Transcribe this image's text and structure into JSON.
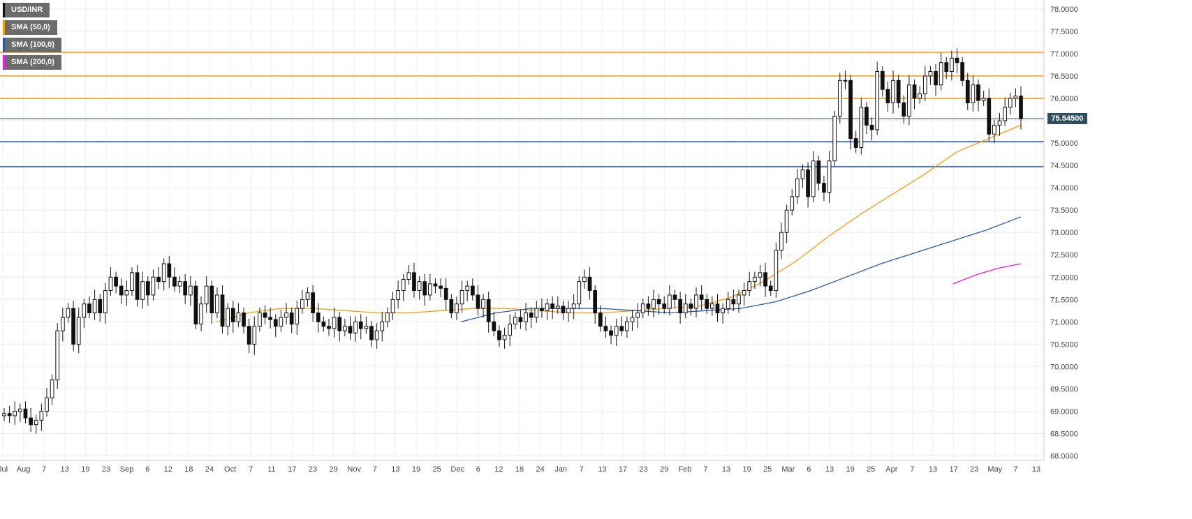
{
  "legend": [
    {
      "label": "USD/INR",
      "color": "#111111"
    },
    {
      "label": "SMA (50,0)",
      "color": "#f39c12"
    },
    {
      "label": "SMA (100,0)",
      "color": "#2c5aa0"
    },
    {
      "label": "SMA (200,0)",
      "color": "#e31ee3"
    }
  ],
  "last_price_label": "75.54500",
  "chart_data": {
    "type": "candlestick",
    "symbol": "USD/INR",
    "ylim": [
      67.9,
      78.2
    ],
    "y_ticks": [
      "68.0000",
      "68.5000",
      "69.0000",
      "69.5000",
      "70.0000",
      "70.5000",
      "71.0000",
      "71.5000",
      "72.0000",
      "72.5000",
      "73.0000",
      "73.5000",
      "74.0000",
      "74.5000",
      "75.0000",
      "75.5000",
      "76.0000",
      "76.5000",
      "77.0000",
      "77.5000",
      "78.0000"
    ],
    "x_ticks": [
      "Jul",
      "Aug",
      "7",
      "13",
      "19",
      "23",
      "Sep",
      "6",
      "12",
      "18",
      "24",
      "Oct",
      "7",
      "11",
      "17",
      "23",
      "29",
      "Nov",
      "7",
      "13",
      "19",
      "25",
      "Dec",
      "6",
      "12",
      "18",
      "24",
      "Jan",
      "7",
      "13",
      "17",
      "23",
      "29",
      "Feb",
      "7",
      "13",
      "19",
      "25",
      "Mar",
      "6",
      "13",
      "19",
      "25",
      "Apr",
      "7",
      "13",
      "17",
      "23",
      "May",
      "7",
      "13"
    ],
    "grid": true,
    "last_price": 75.545,
    "horizontal_levels": [
      {
        "value": 77.03,
        "color": "#f39c12"
      },
      {
        "value": 76.5,
        "color": "#f39c12"
      },
      {
        "value": 76.0,
        "color": "#f39c12"
      },
      {
        "value": 75.03,
        "color": "#1f4e9c"
      },
      {
        "value": 74.47,
        "color": "#1f4e9c"
      }
    ],
    "candle_closes": [
      68.95,
      68.9,
      69.0,
      69.05,
      68.85,
      68.7,
      68.8,
      69.0,
      69.3,
      69.7,
      70.8,
      71.1,
      71.3,
      70.5,
      71.1,
      71.4,
      71.2,
      71.5,
      71.2,
      71.7,
      72.0,
      71.8,
      71.6,
      71.7,
      72.1,
      71.5,
      71.9,
      71.6,
      72.0,
      71.9,
      72.3,
      72.0,
      71.8,
      71.9,
      71.6,
      71.8,
      70.95,
      71.4,
      71.8,
      71.2,
      71.6,
      70.9,
      71.3,
      71.0,
      71.2,
      70.9,
      70.5,
      70.9,
      71.2,
      71.1,
      71.05,
      70.9,
      71.1,
      71.2,
      70.95,
      71.3,
      71.5,
      71.65,
      71.2,
      71.0,
      70.9,
      70.85,
      71.1,
      70.8,
      70.9,
      70.75,
      71.0,
      70.85,
      70.9,
      70.6,
      70.8,
      71.0,
      71.2,
      71.5,
      71.7,
      71.95,
      72.1,
      71.7,
      71.9,
      71.6,
      71.85,
      71.8,
      71.75,
      71.5,
      71.2,
      71.4,
      71.7,
      71.8,
      71.6,
      71.3,
      71.5,
      71.0,
      70.8,
      70.6,
      70.7,
      70.95,
      71.1,
      71.0,
      71.2,
      71.1,
      71.3,
      71.25,
      71.4,
      71.3,
      71.35,
      71.2,
      71.3,
      71.4,
      71.9,
      72.0,
      71.7,
      71.2,
      70.9,
      70.8,
      70.7,
      70.9,
      70.8,
      71.0,
      71.1,
      71.2,
      71.4,
      71.3,
      71.5,
      71.4,
      71.3,
      71.6,
      71.5,
      71.2,
      71.4,
      71.3,
      71.6,
      71.5,
      71.3,
      71.4,
      71.2,
      71.3,
      71.5,
      71.4,
      71.6,
      71.7,
      71.9,
      72.0,
      72.1,
      71.8,
      71.7,
      72.6,
      73.0,
      73.5,
      73.8,
      74.2,
      74.4,
      73.8,
      74.6,
      74.1,
      73.9,
      74.6,
      75.6,
      76.4,
      76.4,
      75.1,
      74.9,
      75.8,
      75.4,
      75.3,
      76.6,
      76.2,
      75.9,
      76.4,
      75.9,
      75.6,
      76.3,
      76.0,
      76.1,
      76.5,
      76.6,
      76.3,
      76.8,
      76.6,
      76.9,
      76.8,
      76.4,
      75.9,
      76.3,
      75.95,
      76.0,
      75.2,
      75.4,
      75.5,
      75.8,
      76.0,
      76.05,
      75.545
    ],
    "series": [
      {
        "name": "SMA (50,0)",
        "values": [
          71.0,
          71.2,
          71.3,
          71.3,
          71.25,
          71.2,
          71.2,
          71.25,
          71.3,
          71.3,
          71.25,
          71.2,
          71.2,
          71.25,
          71.3,
          71.35,
          71.55,
          71.9,
          72.35,
          72.9,
          73.4,
          73.85,
          74.3,
          74.8,
          75.1,
          75.4
        ]
      },
      {
        "name": "SMA (100,0)",
        "values": [
          71.0,
          71.2,
          71.3,
          71.3,
          71.3,
          71.25,
          71.2,
          71.25,
          71.3,
          71.45,
          71.7,
          72.0,
          72.3,
          72.55,
          72.8,
          73.05,
          73.35
        ]
      },
      {
        "name": "SMA (200,0)",
        "values": [
          71.85,
          72.05,
          72.2,
          72.3
        ]
      }
    ]
  }
}
